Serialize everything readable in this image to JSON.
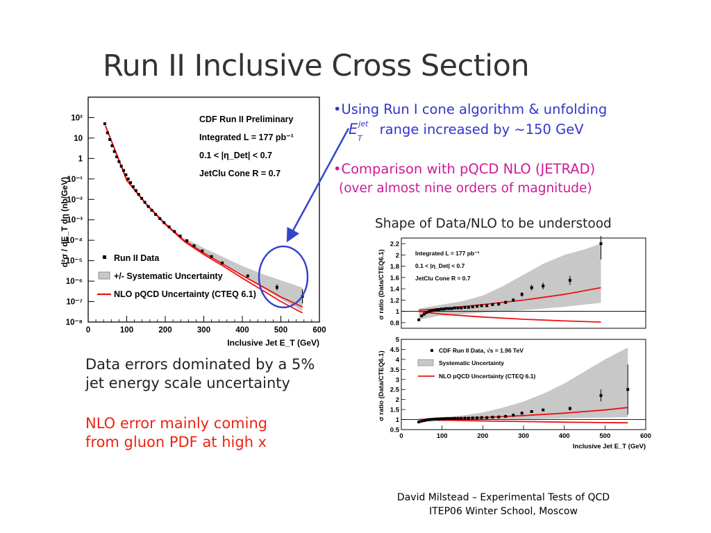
{
  "title": "Run II Inclusive Cross Section",
  "bullets": {
    "b1_line1": "•Using Run I cone algorithm & unfolding",
    "b1_range_pre": "E",
    "b1_range_sup": "jet",
    "b1_range_sub": "T",
    "b1_line2": "range increased by ~150 GeV",
    "b2_line1": "•Comparison with pQCD NLO (JETRAD)",
    "b2_line2": "(over almost nine orders of magnitude)"
  },
  "shape_note": "Shape of Data/NLO to be understood",
  "note_black": [
    "Data errors dominated by a 5%",
    "jet energy scale uncertainty"
  ],
  "note_red": [
    "NLO error mainly coming",
    "from gluon PDF at high x"
  ],
  "footer": [
    "David Milstead – Experimental Tests of QCD",
    "ITEP06 Winter School, Moscow"
  ],
  "colors": {
    "title": "#333333",
    "blue_text": "#3333cc",
    "magenta_text": "#cc1a99",
    "red_text": "#ee2211",
    "nlo_line": "#ee1111",
    "band": "#c8c8c8",
    "arrow": "#3344cc"
  },
  "chart_data": [
    {
      "type": "scatter",
      "ylabel": "d²σ / dE_T dη (nb/GeV)",
      "xlabel": "Inclusive Jet E_T (GeV)",
      "xlim": [
        0,
        600
      ],
      "ylim": [
        1e-08,
        1000
      ],
      "y_scale": "log",
      "x_ticks": [
        0,
        100,
        200,
        300,
        400,
        500,
        600
      ],
      "y_ticks": [
        {
          "value": 100,
          "label": "10²"
        },
        {
          "value": 10,
          "label": "10"
        },
        {
          "value": 1,
          "label": "1"
        },
        {
          "value": 0.1,
          "label": "10⁻¹"
        },
        {
          "value": 0.01,
          "label": "10⁻²"
        },
        {
          "value": 0.001,
          "label": "10⁻³"
        },
        {
          "value": 0.0001,
          "label": "10⁻⁴"
        },
        {
          "value": 1e-05,
          "label": "10⁻⁵"
        },
        {
          "value": 1e-06,
          "label": "10⁻⁶"
        },
        {
          "value": 1e-07,
          "label": "10⁻⁷"
        },
        {
          "value": 1e-08,
          "label": "10⁻⁸"
        }
      ],
      "info": [
        "CDF Run II Preliminary",
        "Integrated L = 177 pb⁻¹",
        "0.1 < |η_Det| < 0.7",
        "JetClu Cone R = 0.7"
      ],
      "legend": [
        "Run II Data",
        "+/- Systematic Uncertainty",
        "NLO pQCD Uncertainty (CTEQ 6.1)"
      ],
      "series": [
        {
          "name": "Run II Data",
          "x": [
            43,
            50,
            56,
            62,
            68,
            74,
            80,
            86,
            92,
            98,
            104,
            110,
            117,
            124,
            131,
            139,
            147,
            156,
            165,
            175,
            186,
            197,
            210,
            224,
            239,
            256,
            275,
            296,
            320,
            348,
            414,
            490,
            556
          ],
          "y": [
            50,
            18,
            8.5,
            4.2,
            2.2,
            1.2,
            0.7,
            0.42,
            0.26,
            0.16,
            0.1,
            0.066,
            0.042,
            0.027,
            0.0175,
            0.0112,
            0.0072,
            0.0045,
            0.0029,
            0.00185,
            0.00115,
            0.00073,
            0.00045,
            0.00027,
            0.00016,
            9.5e-05,
            5.4e-05,
            3e-05,
            1.6e-05,
            7.8e-06,
            1.8e-06,
            5e-07,
            1.8e-07
          ]
        }
      ],
      "systematic_band": {
        "x": [
          250,
          300,
          350,
          400,
          450,
          500,
          556
        ],
        "y_low": [
          9.5e-05,
          2.5e-05,
          7e-06,
          1.8e-06,
          5e-07,
          1.3e-07,
          3.5e-08
        ],
        "y_high": [
          0.00013,
          4.2e-05,
          1.5e-05,
          5.5e-06,
          2.3e-06,
          1.1e-06,
          4.8e-07
        ]
      },
      "nlo_upper": {
        "x": [
          45,
          100,
          150,
          200,
          250,
          300,
          350,
          400,
          450,
          500,
          556
        ],
        "y": [
          40,
          0.09,
          0.0062,
          0.00065,
          9.5e-05,
          2.4e-05,
          6.8e-06,
          1.9e-06,
          5.7e-07,
          1.7e-07,
          5.5e-08
        ]
      },
      "nlo_lower": {
        "x": [
          45,
          100,
          150,
          200,
          250,
          300,
          350,
          400,
          450,
          500,
          556
        ],
        "y": [
          38,
          0.085,
          0.0058,
          0.0006,
          8.5e-05,
          2e-05,
          5.5e-06,
          1.4e-06,
          3.8e-07,
          1e-07,
          2.8e-08
        ]
      }
    },
    {
      "type": "scatter",
      "ylabel": "σ ratio (Data/CTEQ6.1)",
      "xlim": [
        0,
        600
      ],
      "ylim": [
        0.7,
        2.3
      ],
      "y_ticks": [
        0.8,
        1,
        1.2,
        1.4,
        1.6,
        1.8,
        2,
        2.2
      ],
      "info": [
        "Integrated L = 177 pb⁻¹",
        "0.1 < |η_Det| < 0.7",
        "JetClu Cone R = 0.7"
      ],
      "series": [
        {
          "name": "Data",
          "x": [
            43,
            50,
            56,
            62,
            68,
            74,
            80,
            86,
            92,
            98,
            104,
            110,
            117,
            124,
            131,
            139,
            147,
            156,
            165,
            175,
            186,
            197,
            210,
            224,
            239,
            256,
            275,
            296,
            320,
            348,
            414,
            490
          ],
          "y": [
            0.85,
            0.92,
            0.95,
            0.98,
            1.0,
            1.01,
            1.02,
            1.03,
            1.03,
            1.04,
            1.04,
            1.05,
            1.05,
            1.05,
            1.06,
            1.06,
            1.06,
            1.07,
            1.07,
            1.08,
            1.09,
            1.1,
            1.1,
            1.12,
            1.13,
            1.16,
            1.2,
            1.3,
            1.42,
            1.45,
            1.55,
            2.2
          ],
          "y_err": [
            0.02,
            0.02,
            0.02,
            0.02,
            0.02,
            0.02,
            0.02,
            0.02,
            0.02,
            0.02,
            0.02,
            0.02,
            0.02,
            0.02,
            0.02,
            0.02,
            0.02,
            0.02,
            0.02,
            0.02,
            0.02,
            0.02,
            0.02,
            0.02,
            0.03,
            0.03,
            0.03,
            0.04,
            0.05,
            0.06,
            0.08,
            0.28
          ]
        }
      ],
      "systematic_band": {
        "x": [
          43,
          100,
          150,
          200,
          250,
          300,
          350,
          400,
          450,
          490
        ],
        "y_low": [
          0.85,
          0.93,
          0.95,
          0.98,
          1.0,
          1.02,
          1.05,
          1.08,
          1.12,
          1.15
        ],
        "y_high": [
          1.05,
          1.12,
          1.18,
          1.28,
          1.45,
          1.65,
          1.85,
          2.0,
          2.1,
          2.2
        ]
      },
      "nlo_upper": {
        "x": [
          43,
          100,
          200,
          300,
          400,
          490
        ],
        "y": [
          1.02,
          1.05,
          1.12,
          1.2,
          1.3,
          1.42
        ]
      },
      "nlo_lower": {
        "x": [
          43,
          100,
          200,
          300,
          400,
          490
        ],
        "y": [
          1.0,
          0.95,
          0.9,
          0.86,
          0.83,
          0.81
        ]
      }
    },
    {
      "type": "scatter",
      "ylabel": "σ ratio (Data/CTEQ6.1)",
      "xlabel": "Inclusive Jet E_T (GeV)",
      "xlim": [
        0,
        600
      ],
      "ylim": [
        0.5,
        5
      ],
      "x_ticks": [
        0,
        100,
        200,
        300,
        400,
        500,
        600
      ],
      "y_ticks": [
        0.5,
        1,
        1.5,
        2,
        2.5,
        3,
        3.5,
        4,
        4.5,
        5
      ],
      "legend": [
        "CDF Run II Data,  √s = 1.96 TeV",
        "Systematic Uncertainty",
        "NLO pQCD Uncertainty (CTEQ 6.1)"
      ],
      "series": [
        {
          "name": "CDF Run II Data,  √s = 1.96 TeV",
          "x": [
            43,
            50,
            56,
            62,
            68,
            74,
            80,
            86,
            92,
            98,
            104,
            110,
            117,
            124,
            131,
            139,
            147,
            156,
            165,
            175,
            186,
            197,
            210,
            224,
            239,
            256,
            275,
            296,
            320,
            348,
            414,
            490,
            556
          ],
          "y": [
            0.88,
            0.92,
            0.95,
            0.98,
            1.0,
            1.01,
            1.02,
            1.03,
            1.03,
            1.04,
            1.04,
            1.05,
            1.05,
            1.05,
            1.06,
            1.06,
            1.06,
            1.07,
            1.07,
            1.08,
            1.09,
            1.1,
            1.1,
            1.12,
            1.13,
            1.16,
            1.22,
            1.32,
            1.4,
            1.48,
            1.55,
            2.2,
            2.5
          ],
          "y_err": [
            0.02,
            0.02,
            0.02,
            0.02,
            0.02,
            0.02,
            0.02,
            0.02,
            0.02,
            0.02,
            0.02,
            0.02,
            0.02,
            0.02,
            0.02,
            0.02,
            0.02,
            0.02,
            0.02,
            0.02,
            0.02,
            0.02,
            0.02,
            0.02,
            0.03,
            0.03,
            0.03,
            0.04,
            0.05,
            0.06,
            0.1,
            0.3,
            1.25
          ]
        }
      ],
      "systematic_band": {
        "x": [
          43,
          100,
          150,
          200,
          250,
          300,
          350,
          400,
          450,
          500,
          556
        ],
        "y_low": [
          0.88,
          0.92,
          0.95,
          0.97,
          1.0,
          1.02,
          1.04,
          1.06,
          1.08,
          1.1,
          1.12
        ],
        "y_high": [
          1.05,
          1.12,
          1.2,
          1.35,
          1.6,
          1.9,
          2.3,
          2.8,
          3.4,
          4.0,
          4.6
        ]
      },
      "nlo_upper": {
        "x": [
          43,
          100,
          200,
          300,
          400,
          500,
          556
        ],
        "y": [
          1.0,
          1.04,
          1.1,
          1.2,
          1.32,
          1.48,
          1.6
        ]
      },
      "nlo_lower": {
        "x": [
          43,
          100,
          200,
          300,
          400,
          500,
          556
        ],
        "y": [
          1.0,
          0.97,
          0.93,
          0.9,
          0.87,
          0.85,
          0.84
        ]
      }
    }
  ]
}
